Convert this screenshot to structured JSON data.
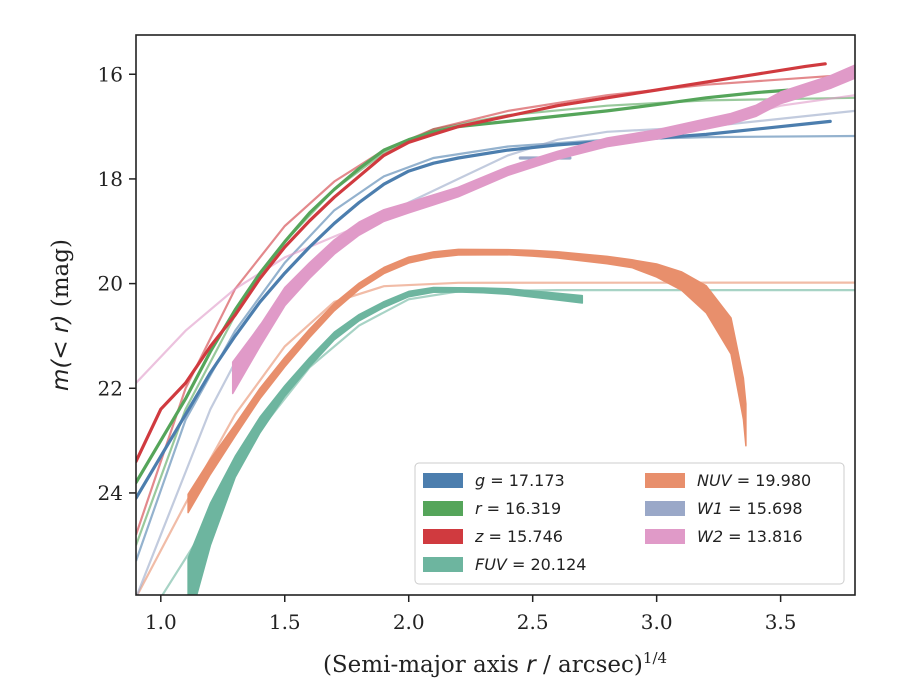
{
  "chart_data": {
    "type": "line",
    "xlabel": "(Semi-major axis r / arcsec)",
    "xlabel_parts": {
      "pre": "(Semi-major axis ",
      "var": "r",
      "post": " / arcsec)",
      "sup": "1/4"
    },
    "ylabel": "m(< r) (mag)",
    "ylabel_parts": {
      "pre": "m(< r)",
      "post": " (mag)"
    },
    "xlim": [
      0.9,
      3.8
    ],
    "ylim": [
      25.95,
      15.25
    ],
    "y_inverted": true,
    "xticks": [
      1.0,
      1.5,
      2.0,
      2.5,
      3.0,
      3.5
    ],
    "xtick_labels": [
      "1.0",
      "1.5",
      "2.0",
      "2.5",
      "3.0",
      "3.5"
    ],
    "yticks": [
      16,
      18,
      20,
      22,
      24
    ],
    "ytick_labels": [
      "16",
      "18",
      "20",
      "22",
      "24"
    ],
    "grid": false,
    "legend_position": "lower-right",
    "legend_columns": 2,
    "series": [
      {
        "name": "g",
        "legend_label": "g = 17.173",
        "color": "#4c7eae",
        "data": [
          [
            0.9,
            24.1
          ],
          [
            1.0,
            23.3
          ],
          [
            1.1,
            22.5
          ],
          [
            1.2,
            21.7
          ],
          [
            1.3,
            21.0
          ],
          [
            1.4,
            20.35
          ],
          [
            1.5,
            19.8
          ],
          [
            1.6,
            19.3
          ],
          [
            1.7,
            18.85
          ],
          [
            1.8,
            18.45
          ],
          [
            1.9,
            18.1
          ],
          [
            2.0,
            17.85
          ],
          [
            2.1,
            17.7
          ],
          [
            2.2,
            17.6
          ],
          [
            2.4,
            17.45
          ],
          [
            2.6,
            17.35
          ],
          [
            2.8,
            17.28
          ],
          [
            3.0,
            17.22
          ],
          [
            3.2,
            17.15
          ],
          [
            3.4,
            17.05
          ],
          [
            3.6,
            16.95
          ],
          [
            3.7,
            16.9
          ]
        ],
        "fit": [
          [
            0.9,
            25.3
          ],
          [
            1.1,
            22.6
          ],
          [
            1.3,
            20.9
          ],
          [
            1.5,
            19.6
          ],
          [
            1.7,
            18.6
          ],
          [
            1.9,
            17.95
          ],
          [
            2.1,
            17.6
          ],
          [
            2.4,
            17.38
          ],
          [
            2.8,
            17.25
          ],
          [
            3.2,
            17.2
          ],
          [
            3.8,
            17.18
          ]
        ]
      },
      {
        "name": "r",
        "legend_label": "r = 16.319",
        "color": "#55a55a",
        "data": [
          [
            0.9,
            23.8
          ],
          [
            1.0,
            23.0
          ],
          [
            1.1,
            22.2
          ],
          [
            1.2,
            21.3
          ],
          [
            1.3,
            20.5
          ],
          [
            1.4,
            19.8
          ],
          [
            1.5,
            19.2
          ],
          [
            1.6,
            18.65
          ],
          [
            1.7,
            18.2
          ],
          [
            1.8,
            17.8
          ],
          [
            1.9,
            17.45
          ],
          [
            2.0,
            17.25
          ],
          [
            2.1,
            17.1
          ],
          [
            2.2,
            17.0
          ],
          [
            2.4,
            16.9
          ],
          [
            2.6,
            16.8
          ],
          [
            2.8,
            16.7
          ],
          [
            3.0,
            16.58
          ],
          [
            3.2,
            16.45
          ],
          [
            3.4,
            16.35
          ],
          [
            3.6,
            16.28
          ],
          [
            3.7,
            16.25
          ]
        ],
        "fit": [
          [
            0.9,
            25.0
          ],
          [
            1.1,
            22.4
          ],
          [
            1.3,
            20.6
          ],
          [
            1.5,
            19.2
          ],
          [
            1.7,
            18.2
          ],
          [
            1.9,
            17.5
          ],
          [
            2.1,
            17.05
          ],
          [
            2.4,
            16.78
          ],
          [
            2.8,
            16.6
          ],
          [
            3.2,
            16.5
          ],
          [
            3.8,
            16.45
          ]
        ]
      },
      {
        "name": "z",
        "legend_label": "z = 15.746",
        "color": "#d03a3f",
        "data": [
          [
            0.9,
            23.4
          ],
          [
            1.0,
            22.4
          ],
          [
            1.1,
            21.9
          ],
          [
            1.2,
            21.2
          ],
          [
            1.3,
            20.6
          ],
          [
            1.4,
            19.9
          ],
          [
            1.5,
            19.3
          ],
          [
            1.6,
            18.8
          ],
          [
            1.7,
            18.35
          ],
          [
            1.8,
            17.95
          ],
          [
            1.9,
            17.55
          ],
          [
            2.0,
            17.3
          ],
          [
            2.1,
            17.15
          ],
          [
            2.2,
            17.0
          ],
          [
            2.4,
            16.8
          ],
          [
            2.6,
            16.6
          ],
          [
            2.8,
            16.45
          ],
          [
            3.0,
            16.3
          ],
          [
            3.2,
            16.15
          ],
          [
            3.4,
            16.0
          ],
          [
            3.6,
            15.85
          ],
          [
            3.68,
            15.8
          ]
        ],
        "fit": [
          [
            0.9,
            24.8
          ],
          [
            1.1,
            22.0
          ],
          [
            1.3,
            20.1
          ],
          [
            1.5,
            18.9
          ],
          [
            1.7,
            18.05
          ],
          [
            1.9,
            17.45
          ],
          [
            2.1,
            17.05
          ],
          [
            2.4,
            16.7
          ],
          [
            2.8,
            16.4
          ],
          [
            3.2,
            16.2
          ],
          [
            3.8,
            16.0
          ]
        ]
      },
      {
        "name": "FUV",
        "legend_label": "FUV = 20.124",
        "color": "#6db59f",
        "data": [
          [
            1.11,
            25.9
          ],
          [
            1.2,
            24.6
          ],
          [
            1.3,
            23.5
          ],
          [
            1.4,
            22.7
          ],
          [
            1.5,
            22.05
          ],
          [
            1.6,
            21.5
          ],
          [
            1.7,
            21.0
          ],
          [
            1.8,
            20.65
          ],
          [
            1.9,
            20.4
          ],
          [
            2.0,
            20.2
          ],
          [
            2.1,
            20.12
          ],
          [
            2.2,
            20.12
          ],
          [
            2.3,
            20.13
          ],
          [
            2.4,
            20.15
          ],
          [
            2.5,
            20.2
          ],
          [
            2.6,
            20.25
          ],
          [
            2.7,
            20.3
          ]
        ],
        "width": [
          [
            1.11,
            1.3
          ],
          [
            1.2,
            0.8
          ],
          [
            1.3,
            0.4
          ],
          [
            1.5,
            0.2
          ],
          [
            1.8,
            0.12
          ],
          [
            2.2,
            0.08
          ],
          [
            2.7,
            0.14
          ]
        ],
        "fit": [
          [
            1.0,
            26.0
          ],
          [
            1.2,
            24.5
          ],
          [
            1.4,
            22.8
          ],
          [
            1.6,
            21.6
          ],
          [
            1.8,
            20.8
          ],
          [
            2.0,
            20.3
          ],
          [
            2.2,
            20.15
          ],
          [
            2.6,
            20.125
          ],
          [
            3.8,
            20.124
          ]
        ]
      },
      {
        "name": "NUV",
        "legend_label": "NUV = 19.980",
        "color": "#e88f6c",
        "data": [
          [
            1.11,
            24.2
          ],
          [
            1.2,
            23.5
          ],
          [
            1.3,
            22.8
          ],
          [
            1.4,
            22.1
          ],
          [
            1.5,
            21.5
          ],
          [
            1.6,
            20.95
          ],
          [
            1.7,
            20.45
          ],
          [
            1.8,
            20.05
          ],
          [
            1.9,
            19.75
          ],
          [
            2.0,
            19.55
          ],
          [
            2.1,
            19.45
          ],
          [
            2.2,
            19.4
          ],
          [
            2.4,
            19.4
          ],
          [
            2.5,
            19.42
          ],
          [
            2.6,
            19.45
          ],
          [
            2.8,
            19.55
          ],
          [
            2.9,
            19.62
          ],
          [
            3.0,
            19.75
          ],
          [
            3.1,
            19.95
          ],
          [
            3.2,
            20.3
          ],
          [
            3.3,
            21.0
          ],
          [
            3.35,
            22.2
          ],
          [
            3.36,
            22.7
          ]
        ],
        "width": [
          [
            1.11,
            0.35
          ],
          [
            1.3,
            0.22
          ],
          [
            1.8,
            0.12
          ],
          [
            2.4,
            0.1
          ],
          [
            2.9,
            0.15
          ],
          [
            3.1,
            0.35
          ],
          [
            3.25,
            0.6
          ],
          [
            3.36,
            0.8
          ]
        ],
        "fit": [
          [
            0.9,
            26.0
          ],
          [
            1.1,
            24.2
          ],
          [
            1.3,
            22.5
          ],
          [
            1.5,
            21.2
          ],
          [
            1.7,
            20.35
          ],
          [
            1.9,
            20.05
          ],
          [
            2.2,
            19.985
          ],
          [
            3.8,
            19.98
          ]
        ]
      },
      {
        "name": "W1",
        "legend_label": "W1 = 15.698",
        "color": "#9aa8c8",
        "data": [
          [
            2.45,
            17.6
          ],
          [
            2.55,
            17.6
          ],
          [
            2.65,
            17.6
          ]
        ],
        "fit": [
          [
            0.9,
            26.0
          ],
          [
            1.0,
            24.8
          ],
          [
            1.1,
            23.6
          ],
          [
            1.2,
            22.4
          ],
          [
            1.3,
            21.5
          ],
          [
            1.4,
            20.8
          ],
          [
            1.6,
            19.75
          ],
          [
            1.8,
            19.0
          ],
          [
            2.0,
            18.45
          ],
          [
            2.2,
            18.0
          ],
          [
            2.4,
            17.55
          ],
          [
            2.6,
            17.25
          ],
          [
            2.8,
            17.1
          ],
          [
            3.0,
            17.05
          ],
          [
            3.2,
            17.0
          ],
          [
            3.4,
            16.9
          ],
          [
            3.6,
            16.8
          ],
          [
            3.8,
            16.7
          ]
        ]
      },
      {
        "name": "W2",
        "legend_label": "W2 = 13.816",
        "color": "#e09ac8",
        "data": [
          [
            1.29,
            21.8
          ],
          [
            1.4,
            21.0
          ],
          [
            1.5,
            20.25
          ],
          [
            1.6,
            19.75
          ],
          [
            1.7,
            19.3
          ],
          [
            1.8,
            18.95
          ],
          [
            1.9,
            18.7
          ],
          [
            2.0,
            18.55
          ],
          [
            2.1,
            18.4
          ],
          [
            2.2,
            18.25
          ],
          [
            2.4,
            17.85
          ],
          [
            2.6,
            17.55
          ],
          [
            2.8,
            17.3
          ],
          [
            3.0,
            17.15
          ],
          [
            3.1,
            17.05
          ],
          [
            3.2,
            16.95
          ],
          [
            3.3,
            16.85
          ],
          [
            3.4,
            16.7
          ],
          [
            3.5,
            16.45
          ],
          [
            3.6,
            16.3
          ],
          [
            3.7,
            16.15
          ],
          [
            3.8,
            15.95
          ]
        ],
        "width": [
          [
            1.29,
            0.6
          ],
          [
            1.4,
            0.4
          ],
          [
            1.6,
            0.3
          ],
          [
            2.0,
            0.2
          ],
          [
            2.6,
            0.15
          ],
          [
            3.3,
            0.2
          ],
          [
            3.8,
            0.25
          ]
        ],
        "fit": [
          [
            0.9,
            21.9
          ],
          [
            1.1,
            20.9
          ],
          [
            1.3,
            20.1
          ],
          [
            1.5,
            19.5
          ],
          [
            1.7,
            19.1
          ],
          [
            1.9,
            18.7
          ],
          [
            2.1,
            18.35
          ],
          [
            2.3,
            18.05
          ],
          [
            2.5,
            17.75
          ],
          [
            2.7,
            17.45
          ],
          [
            2.9,
            17.2
          ],
          [
            3.1,
            17.0
          ],
          [
            3.3,
            16.85
          ],
          [
            3.5,
            16.6
          ],
          [
            3.8,
            16.4
          ]
        ]
      }
    ],
    "legend_order": [
      0,
      1,
      2,
      3,
      4,
      5,
      6
    ]
  }
}
